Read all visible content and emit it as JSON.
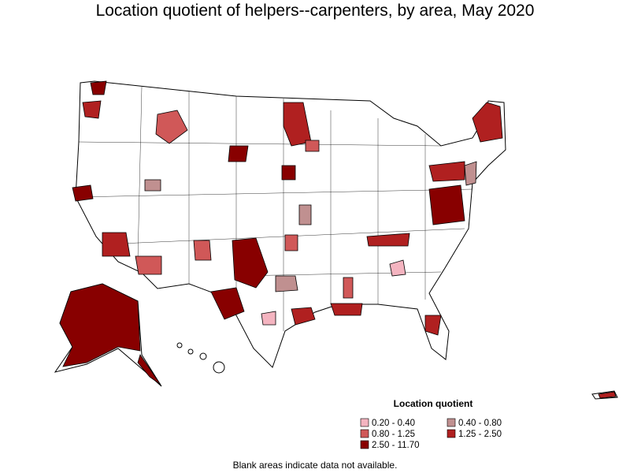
{
  "title": "Location quotient of helpers--carpenters, by area, May 2020",
  "legend": {
    "title": "Location quotient",
    "items": [
      {
        "label": "0.20 - 0.40",
        "color": "#f4b4c0"
      },
      {
        "label": "0.40 - 0.80",
        "color": "#c09090"
      },
      {
        "label": "0.80 - 1.25",
        "color": "#d05858"
      },
      {
        "label": "1.25 - 2.50",
        "color": "#b02020"
      },
      {
        "label": "2.50 - 11.70",
        "color": "#880000"
      }
    ]
  },
  "note": "Blank areas indicate data not available."
}
